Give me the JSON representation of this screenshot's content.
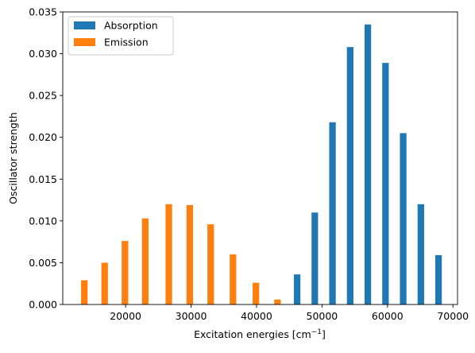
{
  "chart_data": {
    "type": "bar",
    "xlabel": "Excitation energies [cm",
    "xlabel_sup": "−1",
    "xlabel_end": "]",
    "ylabel": "Oscillator strength",
    "xlim": [
      10400,
      70700
    ],
    "ylim": [
      0,
      0.035
    ],
    "xticks": [
      20000,
      30000,
      40000,
      50000,
      60000,
      70000
    ],
    "xtick_labels": [
      "20000",
      "30000",
      "40000",
      "50000",
      "60000",
      "70000"
    ],
    "yticks": [
      0,
      0.005,
      0.01,
      0.015,
      0.02,
      0.025,
      0.03,
      0.035
    ],
    "ytick_labels": [
      "0.000",
      "0.005",
      "0.010",
      "0.015",
      "0.020",
      "0.025",
      "0.030",
      "0.035"
    ],
    "bar_width": 1000,
    "legend_position": "upper-left",
    "series": [
      {
        "name": "Absorption",
        "color": "#1f77b4",
        "x": [
          46200,
          48900,
          51600,
          54300,
          57000,
          59700,
          62400,
          65100,
          67800
        ],
        "values": [
          0.0036,
          0.011,
          0.0218,
          0.0308,
          0.0335,
          0.0289,
          0.0205,
          0.012,
          0.0059
        ]
      },
      {
        "name": "Emission",
        "color": "#ff7f0e",
        "x": [
          13700,
          16800,
          19900,
          23000,
          26600,
          29800,
          33000,
          36400,
          39900,
          43200
        ],
        "values": [
          0.0029,
          0.005,
          0.0076,
          0.0103,
          0.012,
          0.0119,
          0.0096,
          0.006,
          0.0026,
          0.0006
        ]
      }
    ]
  }
}
